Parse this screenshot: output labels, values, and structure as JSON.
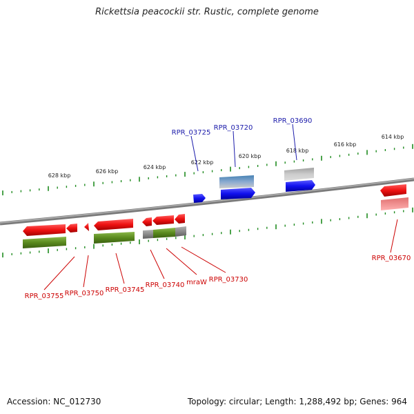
{
  "title": "Rickettsia peacockii str. Rustic, complete genome",
  "footer": {
    "accession": "Accession: NC_012730",
    "summary": "Topology: circular; Length: 1,288,492 bp; Genes: 964"
  },
  "colors": {
    "forward_label": "#1a1aaa",
    "reverse_label": "#cc0000",
    "backbone": "#808080",
    "tick": "#1e8a1e",
    "cds_red": "#ee1111",
    "cds_blue": "#1111ee",
    "gene_green": "#5a8a1e",
    "gene_gray": "#8a8a8a",
    "gene_steel": "#4682b4"
  },
  "kbp_labels": [
    "628 kbp",
    "626 kbp",
    "624 kbp",
    "622 kbp",
    "620 kbp",
    "618 kbp",
    "616 kbp",
    "614 kbp"
  ],
  "forward_labels": [
    "RPR_03725",
    "RPR_03720",
    "RPR_03690"
  ],
  "reverse_labels": [
    "RPR_03755",
    "RPR_03750",
    "RPR_03745",
    "RPR_03740",
    "mraW",
    "RPR_03730",
    "RPR_03670"
  ]
}
